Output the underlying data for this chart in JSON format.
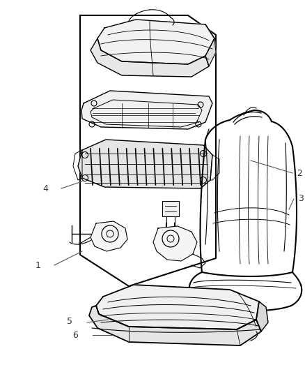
{
  "background_color": "#ffffff",
  "line_color": "#000000",
  "figsize": [
    4.38,
    5.33
  ],
  "dpi": 100,
  "label_color": "#333333"
}
